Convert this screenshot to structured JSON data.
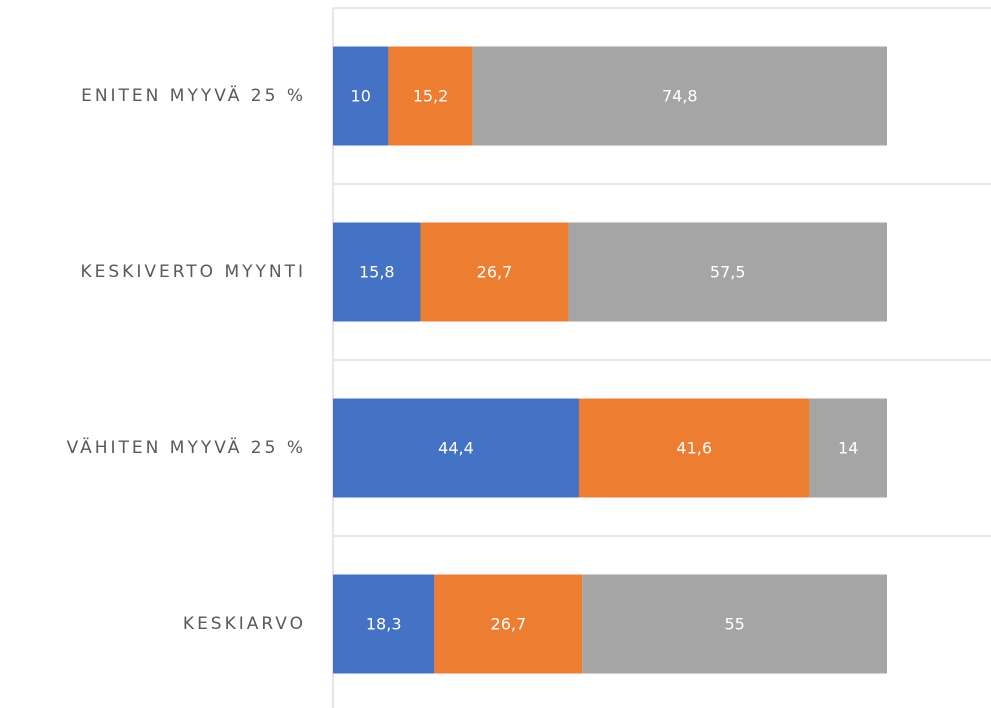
{
  "chart_data": {
    "type": "stacked_barh",
    "categories": [
      "ENITEN MYYVÄ 25 %",
      "KESKIVERTO MYYNTI",
      "VÄHITEN MYYVÄ 25 %",
      "KESKIARVO"
    ],
    "series": [
      {
        "color": "#4472c4",
        "values": [
          10,
          15.8,
          44.4,
          18.3
        ],
        "value_labels": [
          "10",
          "15,8",
          "44,4",
          "18,3"
        ]
      },
      {
        "color": "#ed7d31",
        "values": [
          15.2,
          26.7,
          41.6,
          26.7
        ],
        "value_labels": [
          "15,2",
          "26,7",
          "41,6",
          "26,7"
        ]
      },
      {
        "color": "#a5a5a5",
        "values": [
          74.8,
          57.5,
          14,
          55
        ],
        "value_labels": [
          "74,8",
          "57,5",
          "14",
          "55"
        ]
      }
    ],
    "xlim": [
      0,
      100
    ]
  }
}
